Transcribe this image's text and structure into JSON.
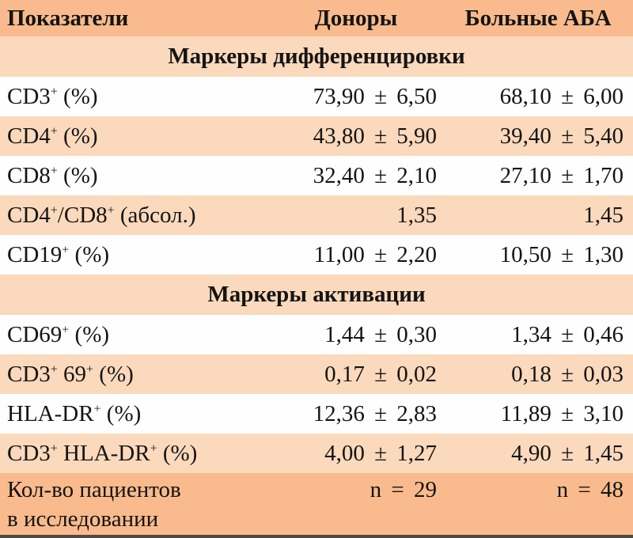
{
  "table": {
    "columns": [
      "Показатели",
      "Доноры",
      "Больные АБА"
    ],
    "colors": {
      "header_bg": "#f9bb8d",
      "light_bg": "#fbd9bc",
      "white_bg": "#fefefe",
      "border_bottom": "#4a4a47",
      "text": "#141414"
    },
    "rows": [
      {
        "type": "section",
        "label": "Маркеры дифференцировки"
      },
      {
        "type": "data",
        "shade": "white",
        "label_parts": [
          "CD3",
          {
            "sup": "+"
          },
          " (%)"
        ],
        "donors": "73,90 ± 6,50",
        "patients": "68,10 ± 6,00"
      },
      {
        "type": "data",
        "shade": "light",
        "label_parts": [
          "CD4",
          {
            "sup": "+"
          },
          " (%)"
        ],
        "donors": "43,80 ± 5,90",
        "patients": "39,40 ± 5,40"
      },
      {
        "type": "data",
        "shade": "white",
        "label_parts": [
          "CD8",
          {
            "sup": "+"
          },
          " (%)"
        ],
        "donors": "32,40 ± 2,10",
        "patients": "27,10 ± 1,70"
      },
      {
        "type": "data",
        "shade": "light",
        "label_parts": [
          "CD4",
          {
            "sup": "+"
          },
          "/CD8",
          {
            "sup": "+"
          },
          " (абсол.)"
        ],
        "donors": "1,35",
        "patients": "1,45"
      },
      {
        "type": "data",
        "shade": "white",
        "label_parts": [
          "CD19",
          {
            "sup": "+"
          },
          " (%)"
        ],
        "donors": "11,00 ± 2,20",
        "patients": "10,50 ± 1,30"
      },
      {
        "type": "section",
        "label": "Маркеры активации"
      },
      {
        "type": "data",
        "shade": "white",
        "label_parts": [
          "CD69",
          {
            "sup": "+"
          },
          " (%)"
        ],
        "donors": "1,44 ± 0,30",
        "patients": "1,34 ± 0,46"
      },
      {
        "type": "data",
        "shade": "light",
        "label_parts": [
          "CD3",
          {
            "sup": "+"
          },
          " 69",
          {
            "sup": "+"
          },
          " (%)"
        ],
        "donors": "0,17 ± 0,02",
        "patients": "0,18 ± 0,03"
      },
      {
        "type": "data",
        "shade": "white",
        "label_parts": [
          "HLA-DR",
          {
            "sup": "+"
          },
          " (%)"
        ],
        "donors": "12,36 ± 2,83",
        "patients": "11,89 ± 3,10"
      },
      {
        "type": "data",
        "shade": "light",
        "label_parts": [
          "CD3",
          {
            "sup": "+"
          },
          " HLA-DR",
          {
            "sup": "+"
          },
          " (%)"
        ],
        "donors": "4,00 ± 1,27",
        "patients": "4,90 ± 1,45"
      },
      {
        "type": "footer",
        "label_lines": [
          "Кол-во пациентов",
          "в исследовании"
        ],
        "donors": "n = 29",
        "patients": "n = 48"
      }
    ]
  },
  "chart_data": {
    "type": "table",
    "title": "",
    "columns": [
      "Показатели",
      "Доноры",
      "Больные АБА"
    ],
    "sections": [
      {
        "name": "Маркеры дифференцировки",
        "rows": [
          {
            "indicator": "CD3+ (%)",
            "donors_mean": 73.9,
            "donors_sd": 6.5,
            "patients_mean": 68.1,
            "patients_sd": 6.0
          },
          {
            "indicator": "CD4+ (%)",
            "donors_mean": 43.8,
            "donors_sd": 5.9,
            "patients_mean": 39.4,
            "patients_sd": 5.4
          },
          {
            "indicator": "CD8+ (%)",
            "donors_mean": 32.4,
            "donors_sd": 2.1,
            "patients_mean": 27.1,
            "patients_sd": 1.7
          },
          {
            "indicator": "CD4+/CD8+ (абсол.)",
            "donors_mean": 1.35,
            "donors_sd": null,
            "patients_mean": 1.45,
            "patients_sd": null
          },
          {
            "indicator": "CD19+ (%)",
            "donors_mean": 11.0,
            "donors_sd": 2.2,
            "patients_mean": 10.5,
            "patients_sd": 1.3
          }
        ]
      },
      {
        "name": "Маркеры активации",
        "rows": [
          {
            "indicator": "CD69+ (%)",
            "donors_mean": 1.44,
            "donors_sd": 0.3,
            "patients_mean": 1.34,
            "patients_sd": 0.46
          },
          {
            "indicator": "CD3+ 69+ (%)",
            "donors_mean": 0.17,
            "donors_sd": 0.02,
            "patients_mean": 0.18,
            "patients_sd": 0.03
          },
          {
            "indicator": "HLA-DR+ (%)",
            "donors_mean": 12.36,
            "donors_sd": 2.83,
            "patients_mean": 11.89,
            "patients_sd": 3.1
          },
          {
            "indicator": "CD3+ HLA-DR+ (%)",
            "donors_mean": 4.0,
            "donors_sd": 1.27,
            "patients_mean": 4.9,
            "patients_sd": 1.45
          }
        ]
      }
    ],
    "sample_sizes": {
      "label": "Кол-во пациентов в исследовании",
      "donors_n": 29,
      "patients_n": 48
    }
  }
}
